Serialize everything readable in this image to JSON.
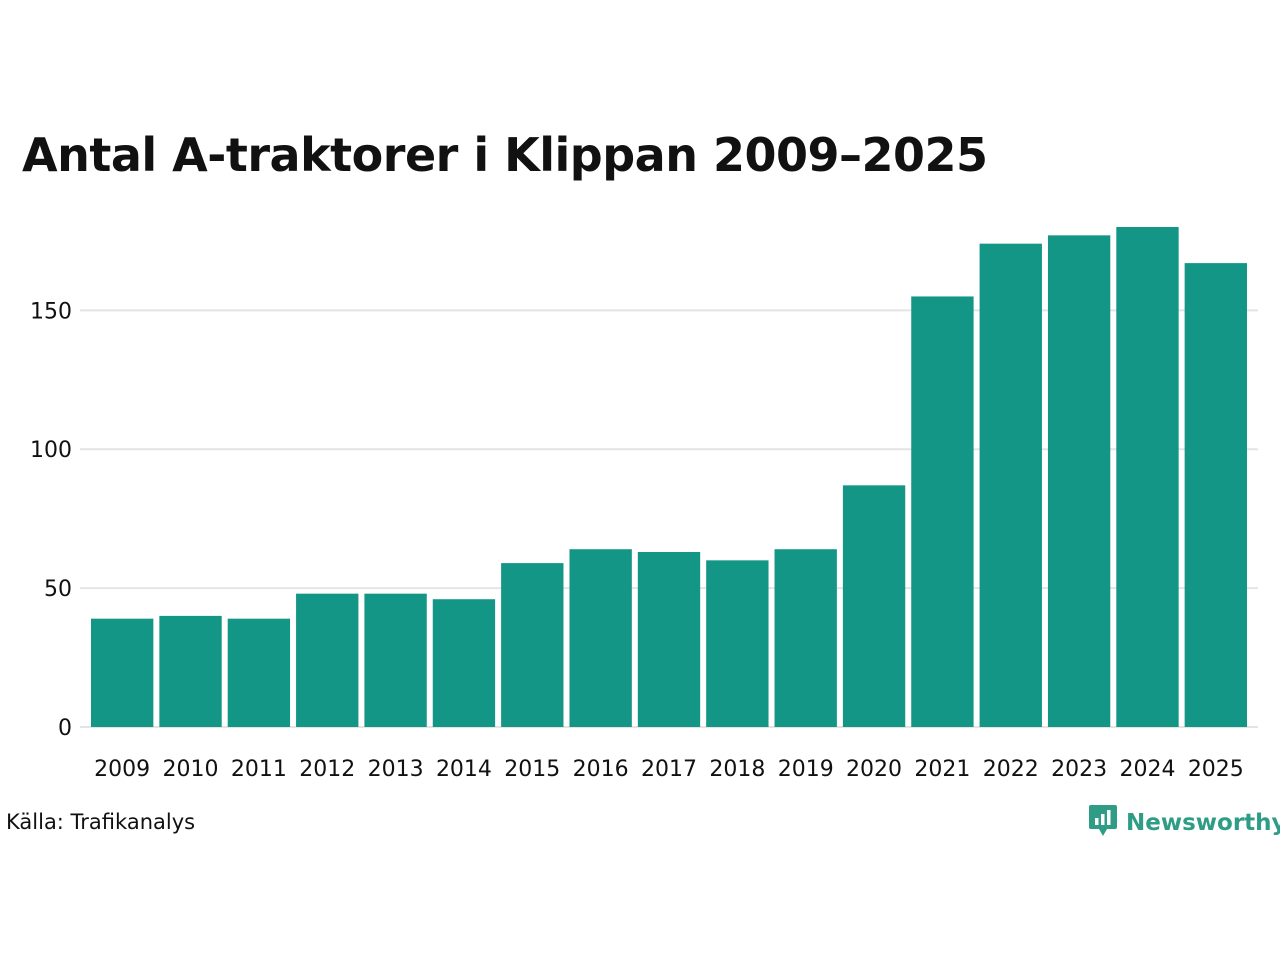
{
  "chart_data": {
    "type": "bar",
    "title": "Antal A-traktorer i Klippan 2009–2025",
    "xlabel": "",
    "ylabel": "",
    "categories": [
      "2009",
      "2010",
      "2011",
      "2012",
      "2013",
      "2014",
      "2015",
      "2016",
      "2017",
      "2018",
      "2019",
      "2020",
      "2021",
      "2022",
      "2023",
      "2024",
      "2025"
    ],
    "values": [
      39,
      40,
      39,
      48,
      48,
      46,
      59,
      64,
      63,
      60,
      64,
      87,
      155,
      174,
      177,
      180,
      167
    ],
    "ylim": [
      0,
      180
    ],
    "yticks": [
      0,
      50,
      100,
      150
    ],
    "grid": true,
    "bar_color": "#139686",
    "grid_color": "#e4e4e4"
  },
  "source_text": "Källa: Trafikanalys",
  "brand": {
    "name": "Newsworthy",
    "icon": "newsworthy-logo-icon",
    "color": "#2f9c86"
  }
}
